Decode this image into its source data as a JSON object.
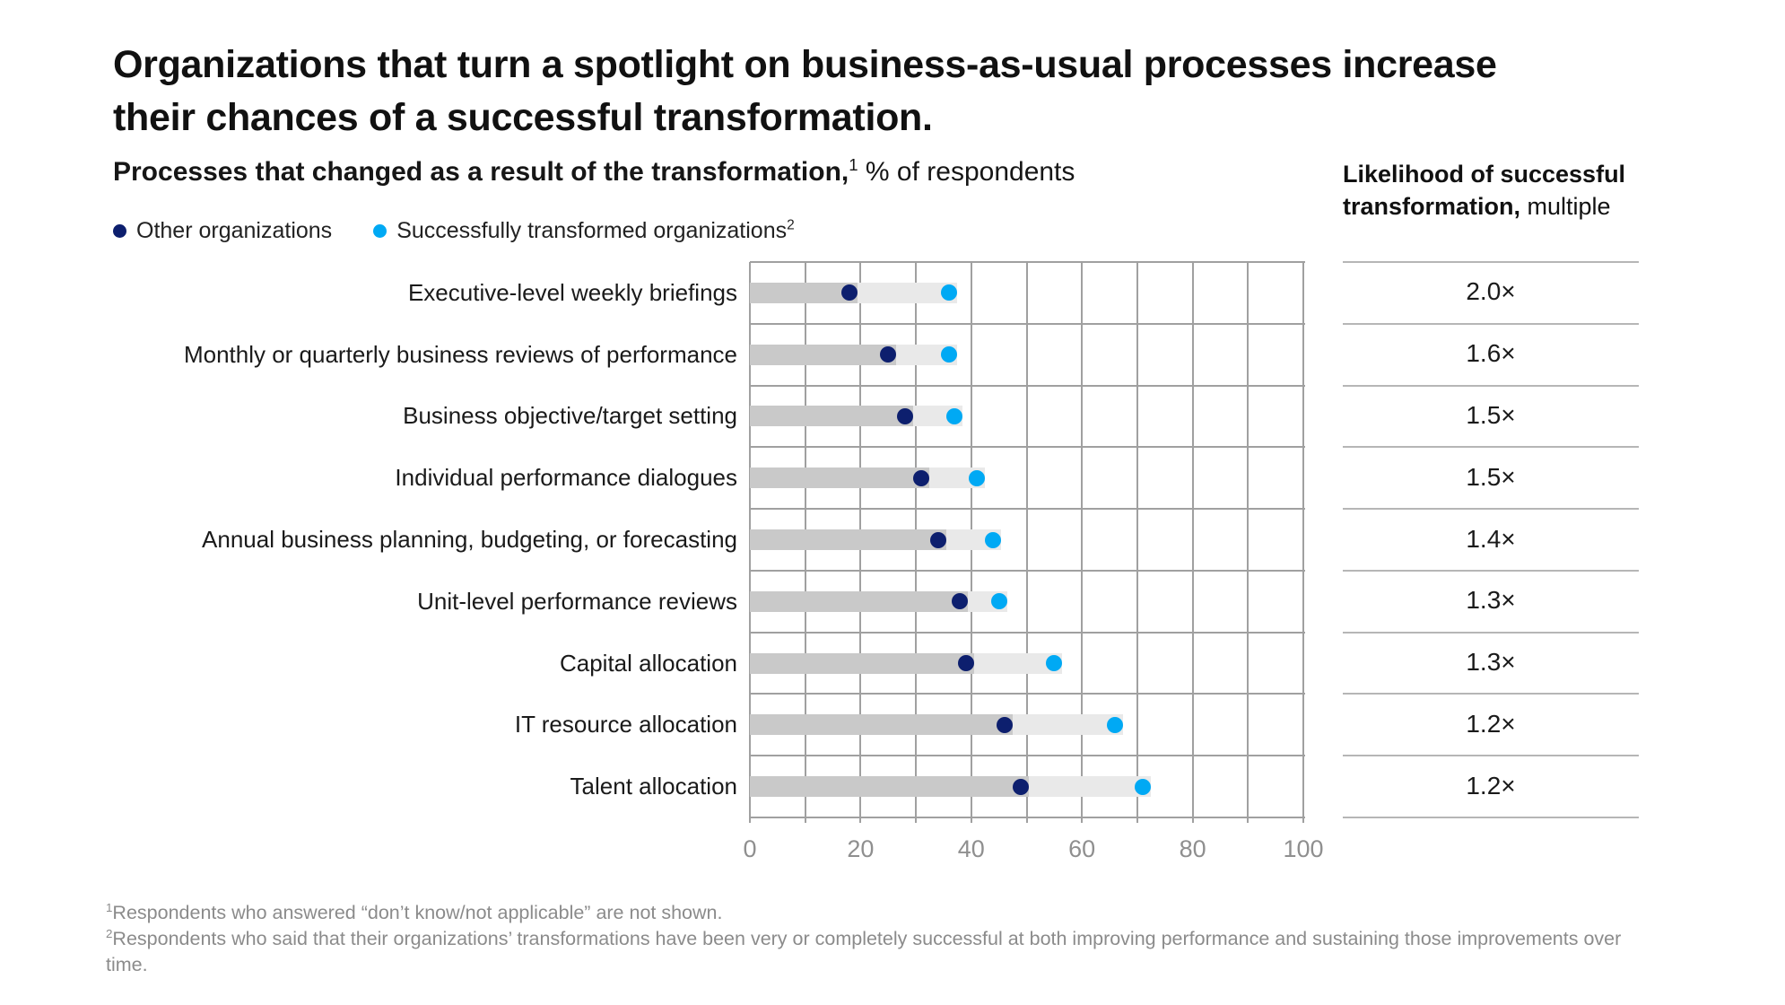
{
  "title": "Organizations that turn a spotlight on business-as-usual processes increase their chances of a successful transformation.",
  "subtitle": {
    "bold": "Processes that changed as a result of the transformation,",
    "sup": "1",
    "regular": " % of respondents"
  },
  "right_header": {
    "bold": "Likelihood of successful transformation,",
    "regular": " multiple"
  },
  "legend": [
    {
      "label": "Other organizations",
      "sup": "",
      "color": "#0d1f6e"
    },
    {
      "label": "Successfully transformed organizations",
      "sup": "2",
      "color": "#00a9f4"
    }
  ],
  "chart_data": {
    "type": "scatter",
    "subtype": "dumbbell-dot-plot",
    "categories": [
      "Executive-level weekly briefings",
      "Monthly or quarterly business reviews of performance",
      "Business objective/target setting",
      "Individual performance dialogues",
      "Annual business planning, budgeting, or forecasting",
      "Unit-level performance reviews",
      "Capital allocation",
      "IT resource allocation",
      "Talent allocation"
    ],
    "series": [
      {
        "name": "Other organizations",
        "color": "#0d1f6e",
        "values": [
          18,
          25,
          28,
          31,
          34,
          38,
          39,
          46,
          49
        ]
      },
      {
        "name": "Successfully transformed organizations",
        "color": "#00a9f4",
        "values": [
          36,
          36,
          37,
          41,
          44,
          45,
          55,
          66,
          71
        ]
      }
    ],
    "multiples": [
      "2.0×",
      "1.6×",
      "1.5×",
      "1.5×",
      "1.4×",
      "1.3×",
      "1.3×",
      "1.2×",
      "1.2×"
    ],
    "xlabel": "",
    "ylabel": "",
    "xlim": [
      0,
      100
    ],
    "xticks": [
      0,
      20,
      40,
      60,
      80,
      100
    ],
    "grid": "on",
    "gridline_step": 10,
    "bar_dark_color": "#c9c9c9",
    "bar_light_color": "#e9e9e9",
    "legend_position": "top-left"
  },
  "footnotes": [
    {
      "sup": "1",
      "text": "Respondents who answered “don’t know/not applicable” are not shown."
    },
    {
      "sup": "2",
      "text": "Respondents who said that their organizations’ transformations have been very or completely successful at both improving performance and sustaining those improvements over time."
    }
  ]
}
